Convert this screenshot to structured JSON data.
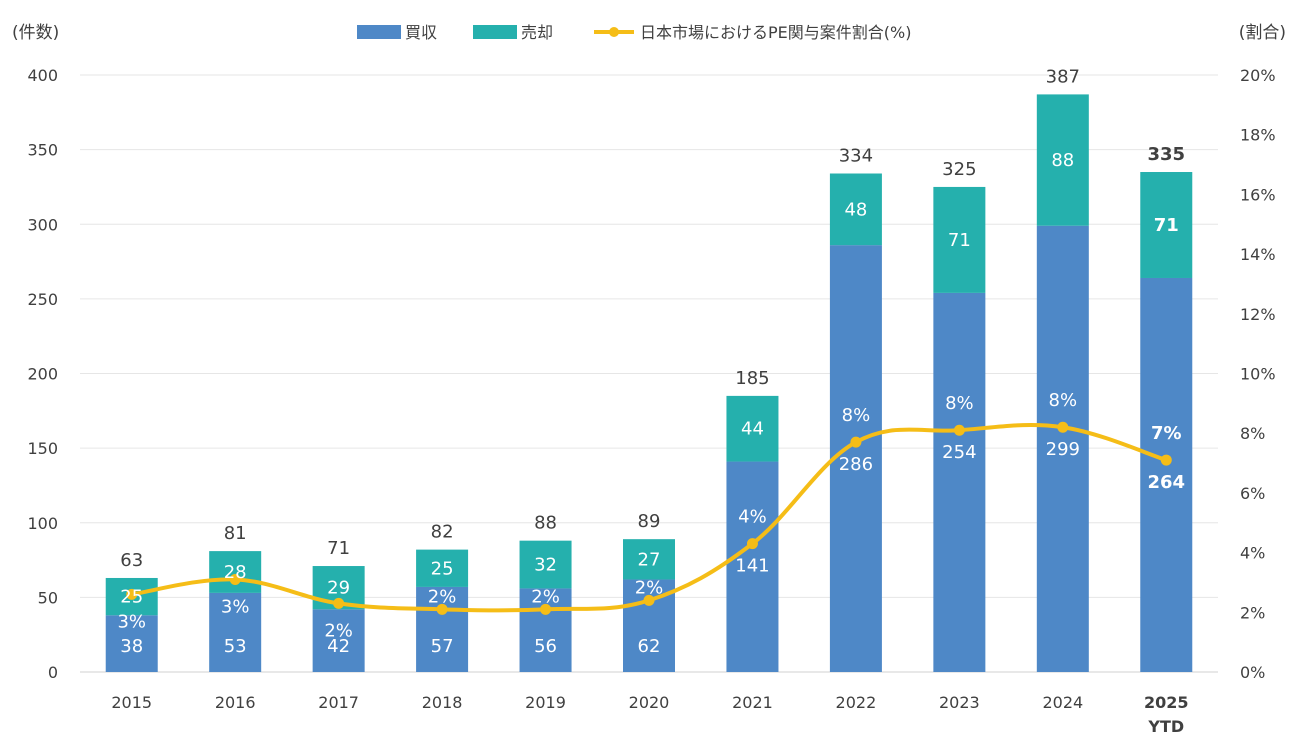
{
  "chart_data": {
    "type": "bar",
    "stacked": true,
    "categories": [
      "2015",
      "2016",
      "2017",
      "2018",
      "2019",
      "2020",
      "2021",
      "2022",
      "2023",
      "2024",
      "2025"
    ],
    "category_sublabels": [
      "",
      "",
      "",
      "",
      "",
      "",
      "",
      "",
      "",
      "",
      "YTD"
    ],
    "highlight_index": 10,
    "series": [
      {
        "name": "買収",
        "color": "#4e88c7",
        "values": [
          38,
          53,
          42,
          57,
          56,
          62,
          141,
          286,
          254,
          299,
          264
        ]
      },
      {
        "name": "売却",
        "color": "#25b0ad",
        "values": [
          25,
          28,
          29,
          25,
          32,
          27,
          44,
          48,
          71,
          88,
          71
        ]
      }
    ],
    "totals": [
      63,
      81,
      71,
      82,
      88,
      89,
      185,
      334,
      325,
      387,
      335
    ],
    "line_series": {
      "name": "日本市場におけるPE関与案件割合(%)",
      "color": "#f5bd17",
      "axis": "right",
      "values": [
        2.6,
        3.1,
        2.3,
        2.1,
        2.1,
        2.4,
        4.3,
        7.7,
        8.1,
        8.2,
        7.1
      ],
      "labels": [
        "3%",
        "3%",
        "2%",
        "2%",
        "2%",
        "2%",
        "4%",
        "8%",
        "8%",
        "8%",
        "7%"
      ]
    },
    "left_axis": {
      "label": "(件数)",
      "ylim": [
        0,
        400
      ],
      "ticks": [
        "0",
        "50",
        "100",
        "150",
        "200",
        "250",
        "300",
        "350",
        "400"
      ]
    },
    "right_axis": {
      "label": "(割合)",
      "ylim": [
        0,
        20
      ],
      "ticks": [
        "0%",
        "2%",
        "4%",
        "6%",
        "8%",
        "10%",
        "12%",
        "14%",
        "16%",
        "18%",
        "20%"
      ]
    },
    "grid": true,
    "legend_position": "top"
  }
}
